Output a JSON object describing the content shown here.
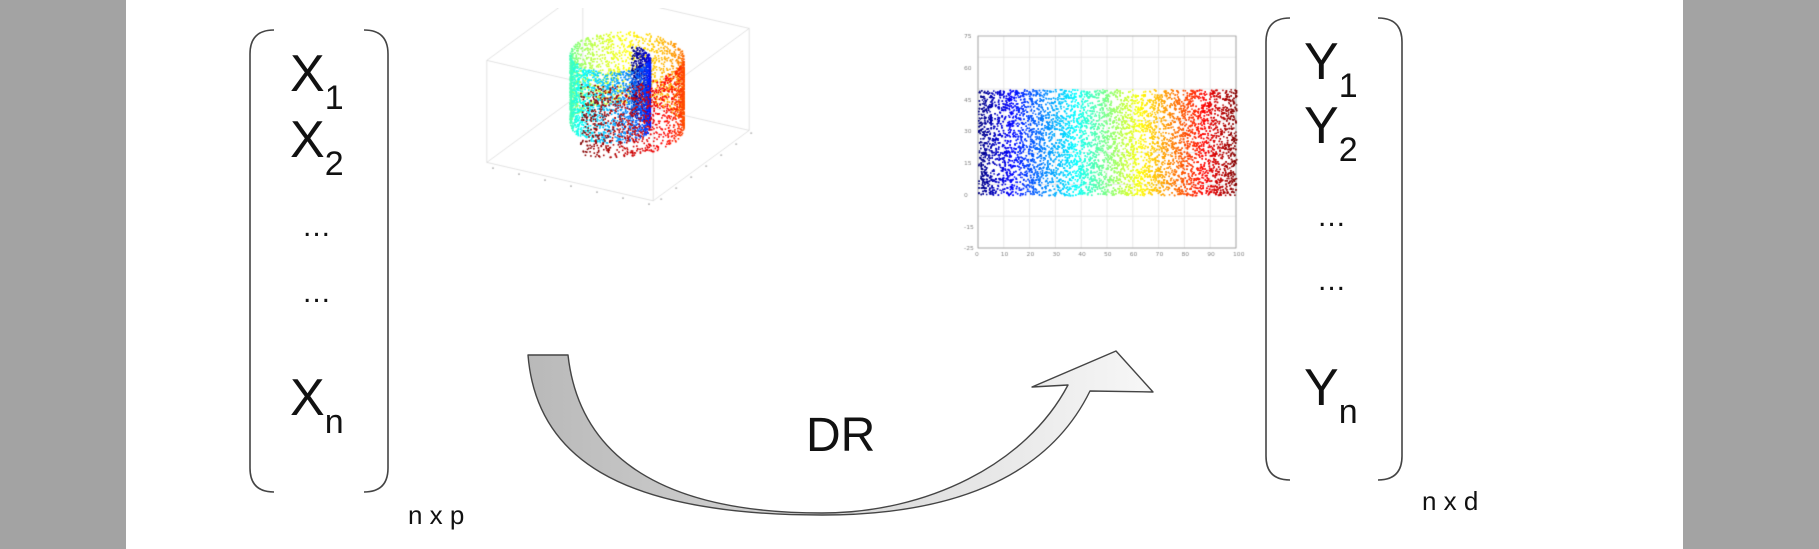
{
  "left_matrix": {
    "items": [
      {
        "letter": "X",
        "sub": "1"
      },
      {
        "letter": "X",
        "sub": "2"
      },
      {
        "ellipsis": "..."
      },
      {
        "ellipsis": "..."
      },
      {
        "letter": "X",
        "sub": "n"
      }
    ],
    "dimension": "n x p"
  },
  "right_matrix": {
    "items": [
      {
        "letter": "Y",
        "sub": "1"
      },
      {
        "letter": "Y",
        "sub": "2"
      },
      {
        "ellipsis": "..."
      },
      {
        "ellipsis": "..."
      },
      {
        "letter": "Y",
        "sub": "n"
      }
    ],
    "dimension": "n x d"
  },
  "arrow_label": "DR",
  "figures": {
    "swiss_roll_plot": {
      "type": "3d-scatter",
      "shape": "swiss-roll",
      "colormap": "jet"
    },
    "embedding_plot": {
      "type": "scatter",
      "colormap": "jet",
      "xlim": [
        0,
        100
      ],
      "ylim": [
        -25,
        75
      ],
      "data_y_range": [
        0,
        50
      ],
      "x_ticks": [
        "0",
        "10",
        "20",
        "30",
        "40",
        "50",
        "60",
        "70",
        "80",
        "90",
        "100"
      ],
      "y_ticks": [
        "75",
        "60",
        "45",
        "30",
        "15",
        "0",
        "-15",
        "-25"
      ]
    }
  },
  "colors": {
    "background": "#a3a3a3",
    "slide": "#ffffff",
    "arrow_fill_dark": "#bdbdbd",
    "arrow_fill_light": "#f4f4f4",
    "stroke": "#444444"
  }
}
